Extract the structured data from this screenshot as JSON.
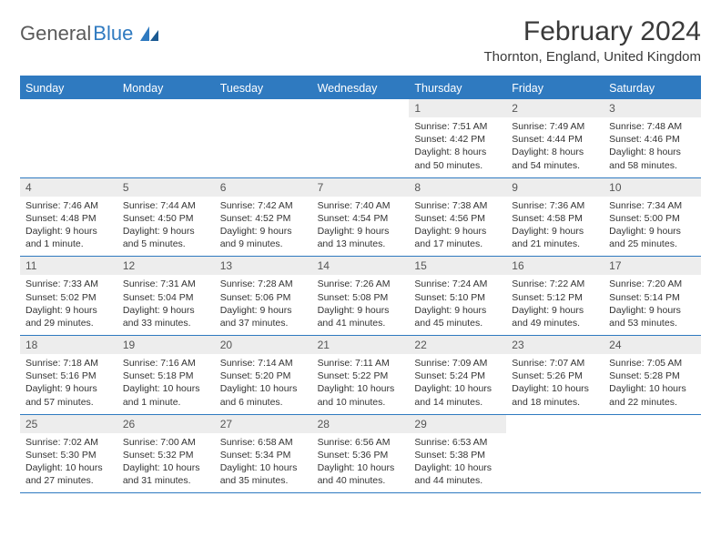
{
  "logo": {
    "word1": "General",
    "word2": "Blue"
  },
  "title": "February 2024",
  "location": "Thornton, England, United Kingdom",
  "colors": {
    "brand_blue": "#2f7ac0",
    "row_divider": "#2f7ac0",
    "daynum_bg": "#ededed",
    "text": "#333333",
    "logo_gray": "#5a5a5a"
  },
  "daysOfWeek": [
    "Sunday",
    "Monday",
    "Tuesday",
    "Wednesday",
    "Thursday",
    "Friday",
    "Saturday"
  ],
  "weeks": [
    [
      {
        "n": "",
        "lines": [
          "",
          "",
          "",
          ""
        ]
      },
      {
        "n": "",
        "lines": [
          "",
          "",
          "",
          ""
        ]
      },
      {
        "n": "",
        "lines": [
          "",
          "",
          "",
          ""
        ]
      },
      {
        "n": "",
        "lines": [
          "",
          "",
          "",
          ""
        ]
      },
      {
        "n": "1",
        "lines": [
          "Sunrise: 7:51 AM",
          "Sunset: 4:42 PM",
          "Daylight: 8 hours",
          "and 50 minutes."
        ]
      },
      {
        "n": "2",
        "lines": [
          "Sunrise: 7:49 AM",
          "Sunset: 4:44 PM",
          "Daylight: 8 hours",
          "and 54 minutes."
        ]
      },
      {
        "n": "3",
        "lines": [
          "Sunrise: 7:48 AM",
          "Sunset: 4:46 PM",
          "Daylight: 8 hours",
          "and 58 minutes."
        ]
      }
    ],
    [
      {
        "n": "4",
        "lines": [
          "Sunrise: 7:46 AM",
          "Sunset: 4:48 PM",
          "Daylight: 9 hours",
          "and 1 minute."
        ]
      },
      {
        "n": "5",
        "lines": [
          "Sunrise: 7:44 AM",
          "Sunset: 4:50 PM",
          "Daylight: 9 hours",
          "and 5 minutes."
        ]
      },
      {
        "n": "6",
        "lines": [
          "Sunrise: 7:42 AM",
          "Sunset: 4:52 PM",
          "Daylight: 9 hours",
          "and 9 minutes."
        ]
      },
      {
        "n": "7",
        "lines": [
          "Sunrise: 7:40 AM",
          "Sunset: 4:54 PM",
          "Daylight: 9 hours",
          "and 13 minutes."
        ]
      },
      {
        "n": "8",
        "lines": [
          "Sunrise: 7:38 AM",
          "Sunset: 4:56 PM",
          "Daylight: 9 hours",
          "and 17 minutes."
        ]
      },
      {
        "n": "9",
        "lines": [
          "Sunrise: 7:36 AM",
          "Sunset: 4:58 PM",
          "Daylight: 9 hours",
          "and 21 minutes."
        ]
      },
      {
        "n": "10",
        "lines": [
          "Sunrise: 7:34 AM",
          "Sunset: 5:00 PM",
          "Daylight: 9 hours",
          "and 25 minutes."
        ]
      }
    ],
    [
      {
        "n": "11",
        "lines": [
          "Sunrise: 7:33 AM",
          "Sunset: 5:02 PM",
          "Daylight: 9 hours",
          "and 29 minutes."
        ]
      },
      {
        "n": "12",
        "lines": [
          "Sunrise: 7:31 AM",
          "Sunset: 5:04 PM",
          "Daylight: 9 hours",
          "and 33 minutes."
        ]
      },
      {
        "n": "13",
        "lines": [
          "Sunrise: 7:28 AM",
          "Sunset: 5:06 PM",
          "Daylight: 9 hours",
          "and 37 minutes."
        ]
      },
      {
        "n": "14",
        "lines": [
          "Sunrise: 7:26 AM",
          "Sunset: 5:08 PM",
          "Daylight: 9 hours",
          "and 41 minutes."
        ]
      },
      {
        "n": "15",
        "lines": [
          "Sunrise: 7:24 AM",
          "Sunset: 5:10 PM",
          "Daylight: 9 hours",
          "and 45 minutes."
        ]
      },
      {
        "n": "16",
        "lines": [
          "Sunrise: 7:22 AM",
          "Sunset: 5:12 PM",
          "Daylight: 9 hours",
          "and 49 minutes."
        ]
      },
      {
        "n": "17",
        "lines": [
          "Sunrise: 7:20 AM",
          "Sunset: 5:14 PM",
          "Daylight: 9 hours",
          "and 53 minutes."
        ]
      }
    ],
    [
      {
        "n": "18",
        "lines": [
          "Sunrise: 7:18 AM",
          "Sunset: 5:16 PM",
          "Daylight: 9 hours",
          "and 57 minutes."
        ]
      },
      {
        "n": "19",
        "lines": [
          "Sunrise: 7:16 AM",
          "Sunset: 5:18 PM",
          "Daylight: 10 hours",
          "and 1 minute."
        ]
      },
      {
        "n": "20",
        "lines": [
          "Sunrise: 7:14 AM",
          "Sunset: 5:20 PM",
          "Daylight: 10 hours",
          "and 6 minutes."
        ]
      },
      {
        "n": "21",
        "lines": [
          "Sunrise: 7:11 AM",
          "Sunset: 5:22 PM",
          "Daylight: 10 hours",
          "and 10 minutes."
        ]
      },
      {
        "n": "22",
        "lines": [
          "Sunrise: 7:09 AM",
          "Sunset: 5:24 PM",
          "Daylight: 10 hours",
          "and 14 minutes."
        ]
      },
      {
        "n": "23",
        "lines": [
          "Sunrise: 7:07 AM",
          "Sunset: 5:26 PM",
          "Daylight: 10 hours",
          "and 18 minutes."
        ]
      },
      {
        "n": "24",
        "lines": [
          "Sunrise: 7:05 AM",
          "Sunset: 5:28 PM",
          "Daylight: 10 hours",
          "and 22 minutes."
        ]
      }
    ],
    [
      {
        "n": "25",
        "lines": [
          "Sunrise: 7:02 AM",
          "Sunset: 5:30 PM",
          "Daylight: 10 hours",
          "and 27 minutes."
        ]
      },
      {
        "n": "26",
        "lines": [
          "Sunrise: 7:00 AM",
          "Sunset: 5:32 PM",
          "Daylight: 10 hours",
          "and 31 minutes."
        ]
      },
      {
        "n": "27",
        "lines": [
          "Sunrise: 6:58 AM",
          "Sunset: 5:34 PM",
          "Daylight: 10 hours",
          "and 35 minutes."
        ]
      },
      {
        "n": "28",
        "lines": [
          "Sunrise: 6:56 AM",
          "Sunset: 5:36 PM",
          "Daylight: 10 hours",
          "and 40 minutes."
        ]
      },
      {
        "n": "29",
        "lines": [
          "Sunrise: 6:53 AM",
          "Sunset: 5:38 PM",
          "Daylight: 10 hours",
          "and 44 minutes."
        ]
      },
      {
        "n": "",
        "lines": [
          "",
          "",
          "",
          ""
        ]
      },
      {
        "n": "",
        "lines": [
          "",
          "",
          "",
          ""
        ]
      }
    ]
  ]
}
